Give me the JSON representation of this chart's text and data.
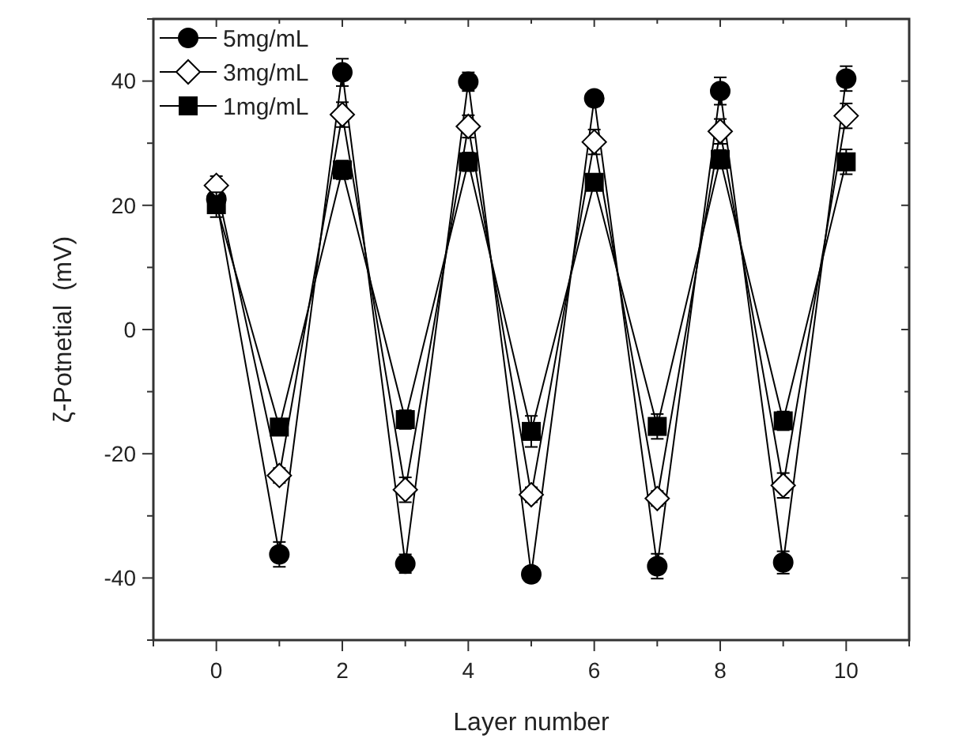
{
  "chart_data": {
    "type": "line",
    "xlabel": "Layer number",
    "ylabel": "ζ-Potnetial  (mV)",
    "x": [
      0,
      1,
      2,
      3,
      4,
      5,
      6,
      7,
      8,
      9,
      10
    ],
    "series": [
      {
        "name": "5mg/mL",
        "color": "#000000",
        "marker": "circle",
        "values": [
          21,
          -36.2,
          41.4,
          -37.7,
          39.9,
          -39.4,
          37.2,
          -38.1,
          38.4,
          -37.5,
          40.4
        ],
        "errors": [
          2,
          2,
          2.2,
          1.5,
          1.5,
          1.2,
          1.2,
          2,
          2.2,
          1.8,
          2
        ]
      },
      {
        "name": "3mg/mL",
        "color": "#000000",
        "marker": "diamond",
        "values": [
          23.2,
          -23.5,
          34.6,
          -25.8,
          32.7,
          -26.6,
          30.2,
          -27.2,
          31.9,
          -25.1,
          34.4
        ],
        "errors": [
          1.5,
          1.2,
          2,
          2,
          1.8,
          1.2,
          2,
          1.2,
          2,
          2,
          2
        ]
      },
      {
        "name": "1mg/mL",
        "color": "#000000",
        "marker": "square",
        "values": [
          20.1,
          -15.7,
          25.7,
          -14.5,
          27,
          -16.4,
          23.7,
          -15.6,
          27.4,
          -14.7,
          27
        ],
        "errors": [
          2,
          1,
          1.5,
          1.5,
          1.5,
          2.5,
          1.2,
          2,
          1.5,
          1.5,
          2
        ]
      }
    ],
    "xlim": [
      -1,
      11
    ],
    "ylim": [
      -50,
      50
    ],
    "xticks": [
      {
        "value": -1,
        "label": null
      },
      0,
      {
        "value": 1,
        "label": null
      },
      2,
      {
        "value": 3,
        "label": null
      },
      4,
      {
        "value": 5,
        "label": null
      },
      6,
      {
        "value": 7,
        "label": null
      },
      8,
      {
        "value": 9,
        "label": null
      },
      10,
      {
        "value": 11,
        "label": null
      }
    ],
    "yticks": [
      {
        "value": -50,
        "label": null
      },
      -40,
      {
        "value": -30,
        "label": null
      },
      -20,
      {
        "value": -10,
        "label": null
      },
      0,
      {
        "value": 10,
        "label": null
      },
      20,
      {
        "value": 30,
        "label": null
      },
      40,
      {
        "value": 50,
        "label": null
      }
    ],
    "legend": "top left",
    "grid": false,
    "line_style": "solid"
  }
}
